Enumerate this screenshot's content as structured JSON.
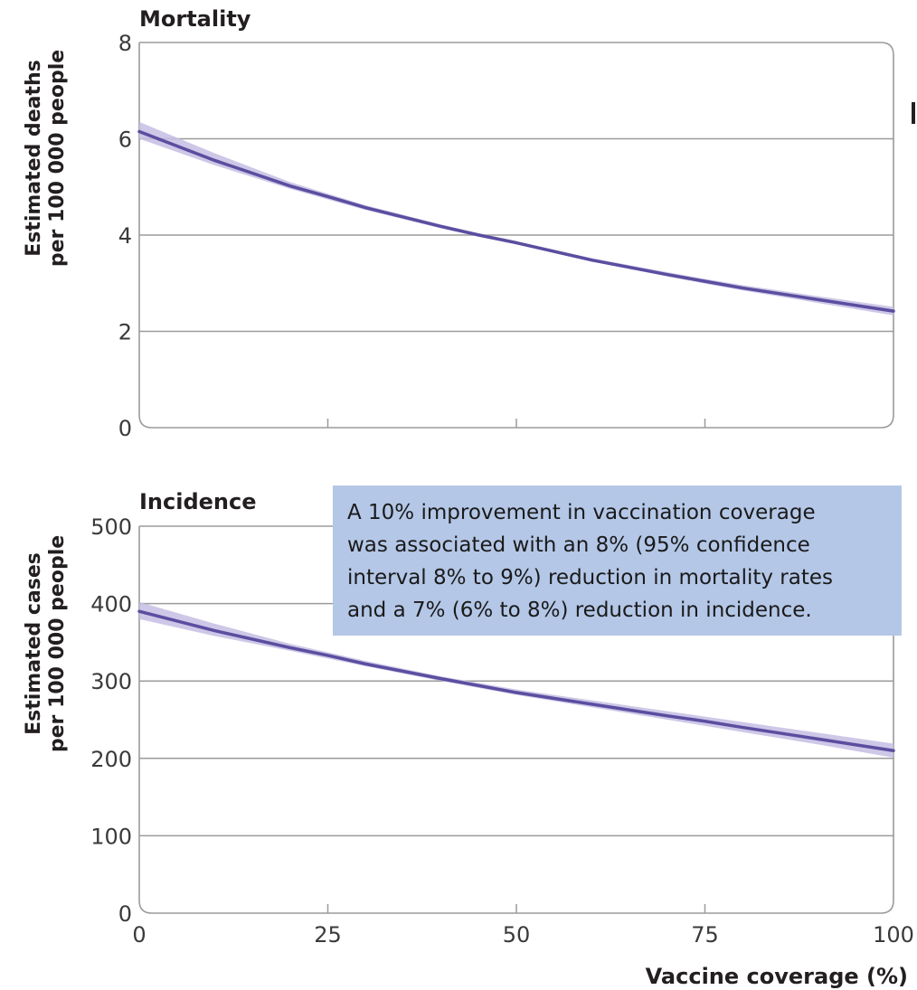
{
  "chart_data": [
    {
      "type": "line",
      "title": "Mortality",
      "ylabel": [
        "Estimated deaths",
        "per 100 000 people"
      ],
      "xlabel": "",
      "x_ticks": [
        0,
        25,
        50,
        75,
        100
      ],
      "x_tick_labels_shown": false,
      "ylim": [
        0,
        8
      ],
      "xlim": [
        0,
        100
      ],
      "y_ticks": [
        0,
        2,
        4,
        6,
        8
      ],
      "grid": "horizontal",
      "series": [
        {
          "x": [
            0,
            10,
            20,
            25,
            30,
            40,
            45,
            50,
            60,
            70,
            75,
            80,
            90,
            100
          ],
          "y": [
            6.15,
            5.55,
            5.02,
            4.8,
            4.57,
            4.18,
            4.0,
            3.84,
            3.48,
            3.18,
            3.04,
            2.9,
            2.66,
            2.42
          ],
          "ci_lower": [
            6.0,
            5.45,
            4.96,
            4.74,
            4.52,
            4.14,
            3.97,
            3.81,
            3.45,
            3.14,
            2.99,
            2.85,
            2.59,
            2.33
          ],
          "ci_upper": [
            6.35,
            5.7,
            5.1,
            4.86,
            4.62,
            4.22,
            4.04,
            3.87,
            3.52,
            3.23,
            3.09,
            2.96,
            2.73,
            2.51
          ]
        }
      ],
      "colors": {
        "line": "#5b4ea0",
        "band": "#c6bde3"
      }
    },
    {
      "type": "line",
      "title": "Incidence",
      "ylabel": [
        "Estimated cases",
        "per 100 000 people"
      ],
      "xlabel": "Vaccine coverage (%)",
      "x_ticks": [
        0,
        25,
        50,
        75,
        100
      ],
      "x_tick_labels_shown": true,
      "ylim": [
        0,
        500
      ],
      "xlim": [
        0,
        100
      ],
      "y_ticks": [
        0,
        100,
        200,
        300,
        400,
        500
      ],
      "grid": "horizontal",
      "series": [
        {
          "x": [
            0,
            10,
            20,
            25,
            30,
            40,
            50,
            60,
            70,
            75,
            80,
            90,
            100
          ],
          "y": [
            390,
            365,
            343,
            333,
            322,
            303,
            285,
            270,
            255,
            248,
            240,
            225,
            210
          ],
          "ci_lower": [
            380,
            358,
            339,
            329,
            319,
            300,
            282,
            266,
            250,
            242,
            234,
            218,
            201
          ],
          "ci_upper": [
            402,
            374,
            348,
            337,
            326,
            306,
            289,
            275,
            261,
            254,
            247,
            233,
            219
          ]
        }
      ],
      "colors": {
        "line": "#5b4ea0",
        "band": "#c6bde3"
      }
    }
  ],
  "annotation": {
    "lines": [
      "A 10% improvement in vaccination coverage",
      "was associated with an 8% (95% confidence",
      "interval 8% to 9%) reduction in mortality rates",
      "and a 7% (6% to 8%) reduction in incidence."
    ],
    "background": "#b4c7e7"
  }
}
